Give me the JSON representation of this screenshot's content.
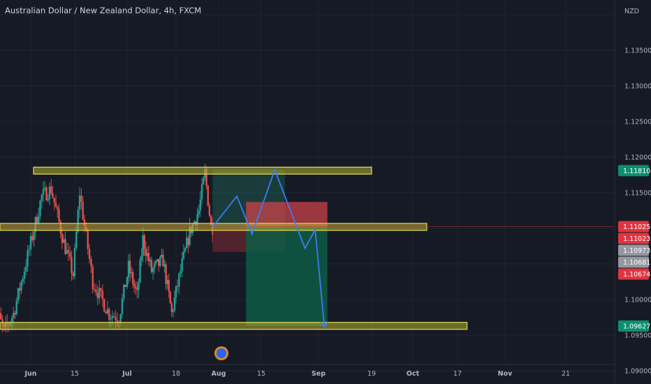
{
  "header": {
    "title": "Australian Dollar / New Zealand Dollar, 4h, FXCM",
    "currency": "NZD"
  },
  "colors": {
    "background": "#161a25",
    "zone_fill": "#b5b034",
    "zone_stroke": "#e3dc52",
    "candle_up": "#26a69a",
    "candle_down": "#ef5350",
    "projection_line": "#3d7bf2",
    "risk_fill": "#d6434a",
    "reward_fill": "#0e5c45",
    "tag_green": "#0d8f6f",
    "tag_red": "#e0353f",
    "tag_gray": "#9598a1"
  },
  "chart_data": {
    "type": "candlestick",
    "symbol": "Australian Dollar / New Zealand Dollar, 4h, FXCM",
    "y_axis": {
      "ticks": [
        "1.13500",
        "1.13000",
        "1.12500",
        "1.12000",
        "1.11500",
        "1.10000",
        "1.09500",
        "1.09000"
      ],
      "tick_values": [
        1.135,
        1.13,
        1.125,
        1.12,
        1.115,
        1.1,
        1.095,
        1.09
      ],
      "range": [
        1.089,
        1.14
      ]
    },
    "x_axis": {
      "ticks": [
        "Jun",
        "15",
        "Jul",
        "18",
        "Aug",
        "15",
        "Sep",
        "19",
        "Oct",
        "17",
        "Nov",
        "21"
      ],
      "bold_ticks": [
        "Jun",
        "Jul",
        "Aug",
        "Sep",
        "Oct",
        "Nov"
      ]
    },
    "price_range": {
      "start": "2023-05-20",
      "end": "2023-12-02"
    },
    "price_tags": [
      {
        "label": "1.11810",
        "value": 1.1181,
        "color": "green"
      },
      {
        "label": "1.11025",
        "value": 1.11025,
        "color": "red"
      },
      {
        "label": "1.11023",
        "value": 1.11023,
        "color": "red"
      },
      {
        "label": "1.10973",
        "value": 1.10973,
        "color": "gray"
      },
      {
        "label": "1.10681",
        "value": 1.10681,
        "color": "gray"
      },
      {
        "label": "1.10674",
        "value": 1.10674,
        "color": "red"
      },
      {
        "label": "1.09627",
        "value": 1.09627,
        "color": "green"
      }
    ],
    "current_price": 1.11025,
    "zones": [
      {
        "name": "resistance",
        "start": "2023-05-20",
        "end": "2023-09-19",
        "value": 1.1181
      },
      {
        "name": "middle-support",
        "start": "2023-05-20",
        "end": "2023-10-06",
        "value": 1.1102
      },
      {
        "name": "lower-support",
        "start": "2023-05-20",
        "end": "2023-10-20",
        "value": 1.0963
      }
    ],
    "long_position": {
      "start": "2023-07-30",
      "end": "2023-08-22",
      "entry": 1.1102,
      "stop": 1.1067,
      "target": 1.1182
    },
    "short_position": {
      "start": "2023-08-10",
      "end": "2023-09-04",
      "entry": 1.1102,
      "stop": 1.1137,
      "target": 1.0963
    },
    "projection": [
      [
        "2023-07-30",
        1.1102
      ],
      [
        "2023-08-07",
        1.1145
      ],
      [
        "2023-08-12",
        1.1092
      ],
      [
        "2023-08-19",
        1.1182
      ],
      [
        "2023-08-28",
        1.1072
      ],
      [
        "2023-08-31",
        1.1098
      ],
      [
        "2023-09-03",
        1.0962
      ]
    ]
  }
}
